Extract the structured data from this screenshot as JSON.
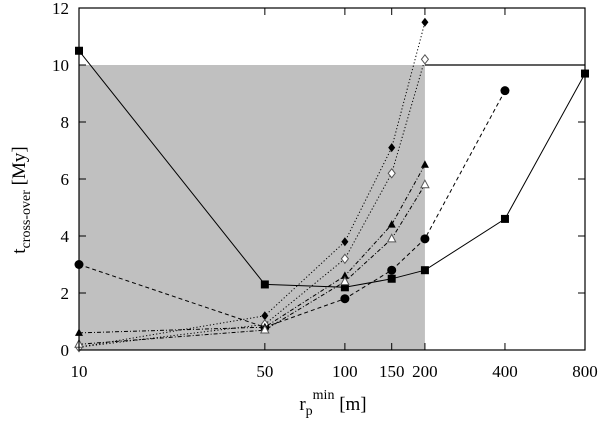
{
  "chart_data": {
    "type": "line",
    "xlabel": {
      "main": "r",
      "sub": "p",
      "sup": "min",
      "unit": " [m]"
    },
    "ylabel": {
      "main": "t",
      "sub": "cross-over",
      "unit": " [My]"
    },
    "x_scale": "log",
    "xlim": [
      10,
      800
    ],
    "ylim": [
      0,
      12
    ],
    "x_ticks": [
      10,
      50,
      100,
      150,
      200,
      400,
      800
    ],
    "y_ticks": [
      0,
      2,
      4,
      6,
      8,
      10,
      12
    ],
    "shaded_region": {
      "x": [
        10,
        200
      ],
      "y": [
        0,
        10
      ],
      "color": "#c0c0c0"
    },
    "reference_line": {
      "x": [
        200,
        800
      ],
      "y": 10
    },
    "series": [
      {
        "marker": "square",
        "line_style": "solid",
        "x": [
          10,
          50,
          100,
          150,
          200,
          400,
          800
        ],
        "y": [
          10.5,
          2.3,
          2.2,
          2.5,
          2.8,
          4.6,
          9.7
        ]
      },
      {
        "marker": "circle",
        "line_style": "dashed",
        "x": [
          10,
          50,
          100,
          150,
          200,
          400
        ],
        "y": [
          3.0,
          0.8,
          1.8,
          2.8,
          3.9,
          9.1
        ]
      },
      {
        "marker": "diamond",
        "line_style": "dotted",
        "x": [
          10,
          50,
          100,
          150,
          200
        ],
        "y": [
          0.1,
          1.2,
          3.8,
          7.1,
          11.5
        ]
      },
      {
        "marker": "diamond-open",
        "line_style": "dotted",
        "x": [
          10,
          50,
          100,
          150,
          200
        ],
        "y": [
          0.1,
          0.9,
          3.2,
          6.2,
          10.2
        ]
      },
      {
        "marker": "triangle",
        "line_style": "dashdot",
        "x": [
          10,
          50,
          100,
          150,
          200
        ],
        "y": [
          0.6,
          0.8,
          2.6,
          4.4,
          6.5
        ]
      },
      {
        "marker": "triangle-open",
        "line_style": "dashdot",
        "x": [
          10,
          50,
          100,
          150,
          200
        ],
        "y": [
          0.2,
          0.7,
          2.4,
          3.9,
          5.8
        ]
      }
    ]
  }
}
